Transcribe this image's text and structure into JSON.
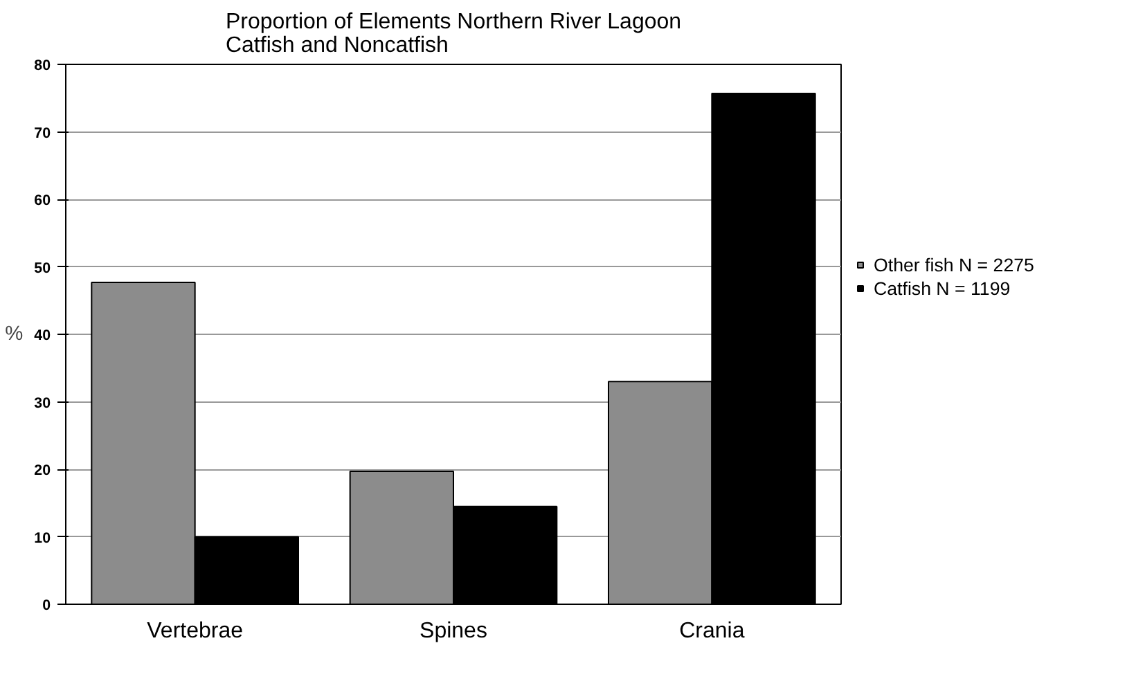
{
  "chart_data": {
    "type": "bar",
    "title": "Proportion of Elements Northern River Lagoon\nCatfish and Noncatfish",
    "ylabel": "%",
    "categories": [
      "Vertebrae",
      "Spines",
      "Crania"
    ],
    "series": [
      {
        "name": "Other fish N = 2275",
        "color": "#8c8c8c",
        "values": [
          47.7,
          19.7,
          33
        ]
      },
      {
        "name": "Catfish N = 1199",
        "color": "#000000",
        "values": [
          10,
          14.5,
          75.7
        ]
      }
    ],
    "ylim": [
      0,
      80
    ],
    "yticks": [
      0,
      10,
      20,
      30,
      40,
      50,
      60,
      70,
      80
    ],
    "grid": "y",
    "legend": "right"
  }
}
